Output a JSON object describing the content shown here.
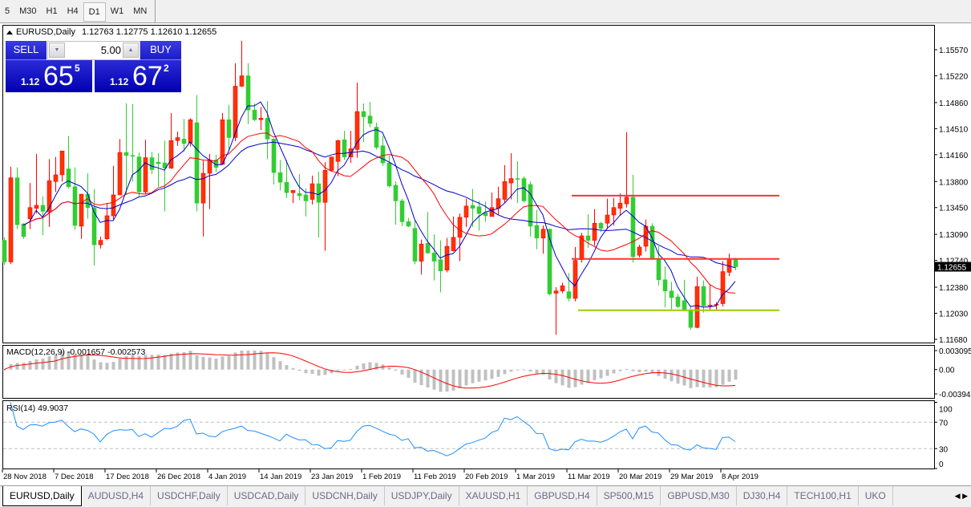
{
  "toolbar": {
    "timeframes": [
      "5",
      "M30",
      "H1",
      "H4",
      "D1",
      "W1",
      "MN"
    ],
    "active": "D1"
  },
  "chart": {
    "symbol_title": "EURUSD,Daily",
    "ohlc_text": "1.12763 1.12775 1.12610 1.12655",
    "current_price": "1.12655",
    "colors": {
      "bull": "#ff3300",
      "bear": "#32cd32",
      "ma_fast": "#0000cc",
      "ma_mid": "#ff0000",
      "ma_slow": "#0000cc",
      "level_red": "#ff3333",
      "level_green": "#99cc00",
      "macd_hist": "#c0c0c0",
      "macd_signal": "#ff0000",
      "rsi": "#1e90ff"
    },
    "price_ticks": [
      "1.15570",
      "1.15220",
      "1.14860",
      "1.14510",
      "1.14160",
      "1.13800",
      "1.13450",
      "1.13090",
      "1.12740",
      "1.12380",
      "1.12030",
      "1.11680"
    ],
    "price_range": [
      1.1168,
      1.1557
    ],
    "levels": [
      {
        "price": 1.1361,
        "color": "red",
        "from_bar": 89
      },
      {
        "price": 1.1276,
        "color": "red",
        "from_bar": 89
      },
      {
        "price": 1.1207,
        "color": "green",
        "from_bar": 90
      }
    ],
    "date_ticks": [
      {
        "bar": 0,
        "label": "28 Nov 2018"
      },
      {
        "bar": 8,
        "label": "7 Dec 2018"
      },
      {
        "bar": 16,
        "label": "17 Dec 2018"
      },
      {
        "bar": 24,
        "label": "26 Dec 2018"
      },
      {
        "bar": 32,
        "label": "4 Jan 2019"
      },
      {
        "bar": 40,
        "label": "14 Jan 2019"
      },
      {
        "bar": 48,
        "label": "23 Jan 2019"
      },
      {
        "bar": 56,
        "label": "1 Feb 2019"
      },
      {
        "bar": 64,
        "label": "11 Feb 2019"
      },
      {
        "bar": 72,
        "label": "20 Feb 2019"
      },
      {
        "bar": 80,
        "label": "1 Mar 2019"
      },
      {
        "bar": 88,
        "label": "11 Mar 2019"
      },
      {
        "bar": 96,
        "label": "20 Mar 2019"
      },
      {
        "bar": 104,
        "label": "29 Mar 2019"
      },
      {
        "bar": 112,
        "label": "8 Apr 2019"
      }
    ],
    "candles": [
      [
        1.1301,
        1.1305,
        1.1268,
        1.1272
      ],
      [
        1.1272,
        1.14,
        1.1269,
        1.1385
      ],
      [
        1.1385,
        1.1399,
        1.1316,
        1.1322
      ],
      [
        1.1323,
        1.1324,
        1.1303,
        1.1306
      ],
      [
        1.133,
        1.1378,
        1.1316,
        1.1345
      ],
      [
        1.1344,
        1.1417,
        1.1337,
        1.1348
      ],
      [
        1.1348,
        1.136,
        1.1308,
        1.134
      ],
      [
        1.1339,
        1.141,
        1.1319,
        1.1381
      ],
      [
        1.138,
        1.1413,
        1.1366,
        1.1389
      ],
      [
        1.1389,
        1.1421,
        1.138,
        1.1421
      ],
      [
        1.1397,
        1.1441,
        1.1371,
        1.1373
      ],
      [
        1.1373,
        1.1399,
        1.1315,
        1.1321
      ],
      [
        1.132,
        1.1363,
        1.1303,
        1.1363
      ],
      [
        1.1363,
        1.1391,
        1.133,
        1.1345
      ],
      [
        1.1345,
        1.137,
        1.1267,
        1.1295
      ],
      [
        1.1295,
        1.1306,
        1.129,
        1.1301
      ],
      [
        1.1303,
        1.1351,
        1.1301,
        1.1334
      ],
      [
        1.1334,
        1.1401,
        1.1329,
        1.1362
      ],
      [
        1.1362,
        1.1437,
        1.1362,
        1.1419
      ],
      [
        1.1419,
        1.1485,
        1.1362,
        1.1415
      ],
      [
        1.1415,
        1.1484,
        1.138,
        1.1414
      ],
      [
        1.1413,
        1.1419,
        1.136,
        1.1366
      ],
      [
        1.1366,
        1.1436,
        1.1363,
        1.1412
      ],
      [
        1.1412,
        1.142,
        1.139,
        1.1396
      ],
      [
        1.1406,
        1.1418,
        1.1373,
        1.1404
      ],
      [
        1.1405,
        1.1435,
        1.134,
        1.1398
      ],
      [
        1.1398,
        1.1472,
        1.1397,
        1.1435
      ],
      [
        1.1435,
        1.1447,
        1.1428,
        1.1439
      ],
      [
        1.1437,
        1.1464,
        1.142,
        1.1431
      ],
      [
        1.1432,
        1.1465,
        1.1427,
        1.1463
      ],
      [
        1.1459,
        1.1496,
        1.134,
        1.1351
      ],
      [
        1.1351,
        1.1408,
        1.1306,
        1.1391
      ],
      [
        1.1391,
        1.1417,
        1.1343,
        1.1409
      ],
      [
        1.1409,
        1.1416,
        1.1393,
        1.1399
      ],
      [
        1.1403,
        1.1472,
        1.1403,
        1.1463
      ],
      [
        1.1463,
        1.1483,
        1.1421,
        1.1439
      ],
      [
        1.1439,
        1.1539,
        1.1434,
        1.1508
      ],
      [
        1.1508,
        1.1569,
        1.1507,
        1.1522
      ],
      [
        1.1522,
        1.1539,
        1.1457,
        1.1476
      ],
      [
        1.1476,
        1.1485,
        1.1461,
        1.1463
      ],
      [
        1.1463,
        1.148,
        1.1449,
        1.1465
      ],
      [
        1.1465,
        1.1488,
        1.141,
        1.1437
      ],
      [
        1.1437,
        1.1438,
        1.1376,
        1.1392
      ],
      [
        1.1392,
        1.1409,
        1.1368,
        1.1379
      ],
      [
        1.1379,
        1.1409,
        1.1358,
        1.1365
      ],
      [
        1.1365,
        1.1368,
        1.1351,
        1.1368
      ],
      [
        1.1364,
        1.139,
        1.1355,
        1.1361
      ],
      [
        1.1362,
        1.1371,
        1.1333,
        1.1354
      ],
      [
        1.1356,
        1.1388,
        1.1349,
        1.1377
      ],
      [
        1.1377,
        1.1393,
        1.1305,
        1.1352
      ],
      [
        1.1352,
        1.1406,
        1.1287,
        1.1395
      ],
      [
        1.1395,
        1.1413,
        1.1394,
        1.1413
      ],
      [
        1.1407,
        1.1436,
        1.1387,
        1.1435
      ],
      [
        1.1436,
        1.1448,
        1.1409,
        1.1413
      ],
      [
        1.1413,
        1.1448,
        1.1405,
        1.1424
      ],
      [
        1.1423,
        1.1513,
        1.1412,
        1.1474
      ],
      [
        1.1474,
        1.1485,
        1.1433,
        1.1467
      ],
      [
        1.1468,
        1.1487,
        1.1453,
        1.1458
      ],
      [
        1.1453,
        1.1459,
        1.1423,
        1.1426
      ],
      [
        1.1428,
        1.1441,
        1.1401,
        1.1405
      ],
      [
        1.1405,
        1.1415,
        1.1372,
        1.1374
      ],
      [
        1.1375,
        1.138,
        1.1322,
        1.1354
      ],
      [
        1.1354,
        1.1357,
        1.132,
        1.1326
      ],
      [
        1.1326,
        1.1331,
        1.1319,
        1.132
      ],
      [
        1.1317,
        1.1328,
        1.1269,
        1.1273
      ],
      [
        1.1273,
        1.1302,
        1.1255,
        1.1296
      ],
      [
        1.1297,
        1.1339,
        1.1283,
        1.1284
      ],
      [
        1.1284,
        1.1309,
        1.1247,
        1.1273
      ],
      [
        1.1275,
        1.1301,
        1.1231,
        1.126
      ],
      [
        1.1261,
        1.1304,
        1.1258,
        1.1293
      ],
      [
        1.1287,
        1.1333,
        1.1286,
        1.1305
      ],
      [
        1.1305,
        1.1337,
        1.1273,
        1.1332
      ],
      [
        1.1332,
        1.1357,
        1.1319,
        1.1347
      ],
      [
        1.1348,
        1.137,
        1.1319,
        1.1344
      ],
      [
        1.1346,
        1.1354,
        1.1314,
        1.1337
      ],
      [
        1.1338,
        1.1353,
        1.1326,
        1.1334
      ],
      [
        1.1333,
        1.1365,
        1.1333,
        1.1345
      ],
      [
        1.1344,
        1.1373,
        1.1335,
        1.1357
      ],
      [
        1.1356,
        1.1402,
        1.1351,
        1.138
      ],
      [
        1.1378,
        1.1418,
        1.1356,
        1.1384
      ],
      [
        1.1384,
        1.1407,
        1.1351,
        1.1383
      ],
      [
        1.1384,
        1.1387,
        1.1352,
        1.1354
      ],
      [
        1.1376,
        1.138,
        1.1306,
        1.132
      ],
      [
        1.1321,
        1.1342,
        1.1289,
        1.1304
      ],
      [
        1.1304,
        1.1321,
        1.1283,
        1.1316
      ],
      [
        1.1316,
        1.1317,
        1.1227,
        1.1229
      ],
      [
        1.123,
        1.1238,
        1.1174,
        1.1233
      ],
      [
        1.1233,
        1.1244,
        1.123,
        1.124
      ],
      [
        1.1232,
        1.1257,
        1.1219,
        1.1223
      ],
      [
        1.1223,
        1.1292,
        1.1219,
        1.1274
      ],
      [
        1.1275,
        1.1311,
        1.1271,
        1.1307
      ],
      [
        1.1307,
        1.1336,
        1.1291,
        1.1301
      ],
      [
        1.1301,
        1.1343,
        1.1294,
        1.1324
      ],
      [
        1.1324,
        1.1326,
        1.1312,
        1.1317
      ],
      [
        1.1324,
        1.1357,
        1.1316,
        1.1335
      ],
      [
        1.1335,
        1.1358,
        1.1321,
        1.1345
      ],
      [
        1.1344,
        1.1364,
        1.1334,
        1.1351
      ],
      [
        1.135,
        1.1446,
        1.1345,
        1.1359
      ],
      [
        1.1359,
        1.1389,
        1.1271,
        1.1279
      ],
      [
        1.1281,
        1.1295,
        1.1278,
        1.1292
      ],
      [
        1.1293,
        1.1329,
        1.1286,
        1.132
      ],
      [
        1.132,
        1.1324,
        1.1275,
        1.1276
      ],
      [
        1.1276,
        1.1293,
        1.124,
        1.1248
      ],
      [
        1.1248,
        1.1266,
        1.1211,
        1.1233
      ],
      [
        1.1233,
        1.1245,
        1.1208,
        1.1224
      ],
      [
        1.1225,
        1.1229,
        1.121,
        1.1212
      ],
      [
        1.122,
        1.1248,
        1.1207,
        1.1208
      ],
      [
        1.1207,
        1.1213,
        1.1181,
        1.1184
      ],
      [
        1.1184,
        1.1252,
        1.1183,
        1.1239
      ],
      [
        1.1239,
        1.1247,
        1.1204,
        1.1213
      ],
      [
        1.1213,
        1.1242,
        1.1207,
        1.1214
      ],
      [
        1.1214,
        1.1218,
        1.1208,
        1.1215
      ],
      [
        1.1216,
        1.1273,
        1.1212,
        1.1259
      ],
      [
        1.1258,
        1.1283,
        1.1253,
        1.1276
      ],
      [
        1.12763,
        1.12775,
        1.1261,
        1.12655
      ]
    ]
  },
  "trade_panel": {
    "sell_label": "SELL",
    "buy_label": "BUY",
    "volume": "5.00",
    "sell_price": {
      "prefix": "1.12",
      "big": "65",
      "sup": "5"
    },
    "buy_price": {
      "prefix": "1.12",
      "big": "67",
      "sup": "2"
    },
    "icons": {
      "down": "arrow-down-icon",
      "up": "arrow-up-icon"
    }
  },
  "macd": {
    "label": "MACD(12,26,9) -0.001657 -0.002573",
    "ticks": [
      "0.003095",
      "0.00",
      "-0.003947"
    ],
    "range": [
      -0.003947,
      0.003095
    ]
  },
  "rsi": {
    "label": "RSI(14) 49.9037",
    "ticks": [
      "100",
      "70",
      "30",
      "0"
    ],
    "levels": [
      70,
      30
    ]
  },
  "tabs": [
    "EURUSD,Daily",
    "AUDUSD,H4",
    "USDCHF,Daily",
    "USDCAD,Daily",
    "USDCNH,Daily",
    "USDJPY,Daily",
    "XAUUSD,H1",
    "GBPUSD,H4",
    "SP500,M15",
    "GBPUSD,M30",
    "DJ30,H4",
    "TECH100,H1",
    "UKO"
  ],
  "active_tab": "EURUSD,Daily"
}
